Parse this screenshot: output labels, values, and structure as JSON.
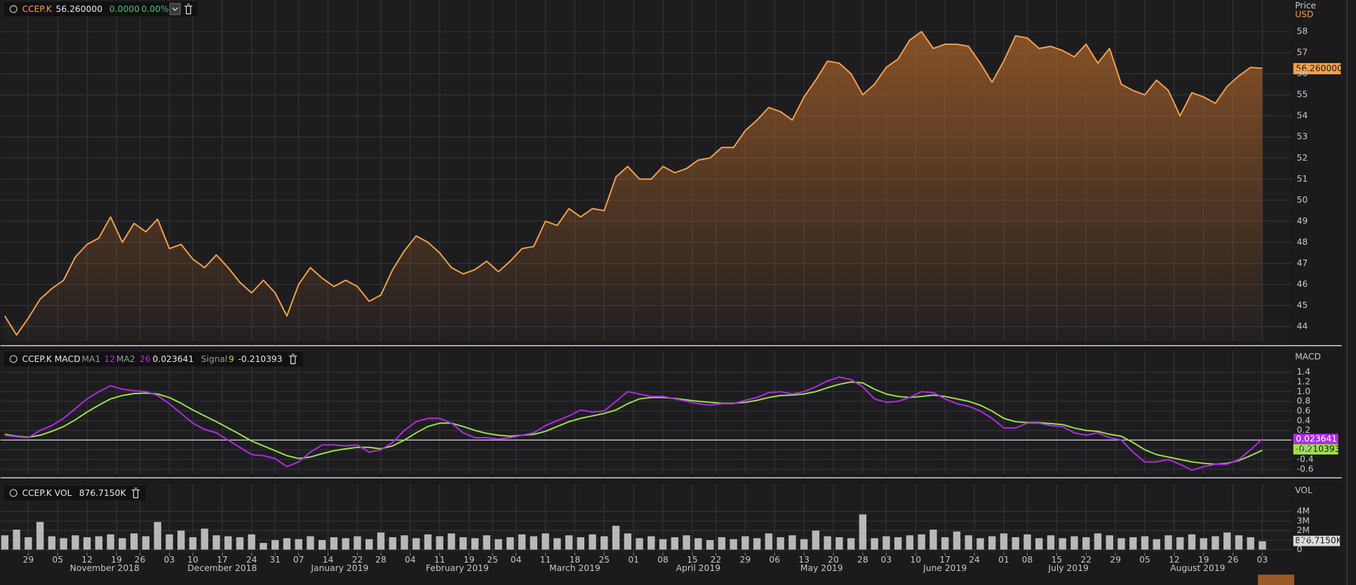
{
  "chart_data": [
    {
      "type": "area",
      "title": "CCEP.K",
      "last_value": "56.260000",
      "change": "0.0000",
      "change_pct": "0.00%",
      "axis_label": "Price",
      "currency": "USD",
      "color": "#f5a04a",
      "grid": true,
      "xlim": [
        0,
        215
      ],
      "x": [
        0,
        2,
        4,
        6,
        8,
        10,
        12,
        14,
        16,
        18,
        20,
        22,
        24,
        26,
        28,
        30,
        32,
        34,
        36,
        38,
        40,
        42,
        44,
        46,
        48,
        50,
        52,
        54,
        56,
        58,
        60,
        62,
        64,
        66,
        68,
        70,
        72,
        74,
        76,
        78,
        80,
        82,
        84,
        86,
        88,
        90,
        92,
        94,
        96,
        98,
        100,
        102,
        104,
        106,
        108,
        110,
        112,
        114,
        116,
        118,
        120,
        122,
        124,
        126,
        128,
        130,
        132,
        134,
        136,
        138,
        140,
        142,
        144,
        146,
        148,
        150,
        152,
        154,
        156,
        158,
        160,
        162,
        164,
        166,
        168,
        170,
        172,
        174,
        176,
        178,
        180,
        182,
        184,
        186,
        188,
        190,
        192,
        194,
        196,
        198,
        200,
        202,
        204,
        206,
        208,
        210,
        212,
        214
      ],
      "values": [
        44.5,
        43.6,
        44.4,
        45.3,
        45.8,
        46.2,
        47.3,
        47.9,
        48.2,
        49.2,
        48.0,
        48.9,
        48.5,
        49.1,
        47.7,
        47.9,
        47.2,
        46.8,
        47.4,
        46.8,
        46.1,
        45.6,
        46.2,
        45.6,
        44.5,
        46.0,
        46.8,
        46.3,
        45.9,
        46.2,
        45.9,
        45.2,
        45.5,
        46.7,
        47.6,
        48.3,
        48.0,
        47.5,
        46.8,
        46.5,
        46.7,
        47.1,
        46.6,
        47.1,
        47.7,
        47.8,
        49.0,
        48.8,
        49.6,
        49.2,
        49.6,
        49.5,
        51.1,
        51.6,
        51.0,
        51.0,
        51.6,
        51.3,
        51.5,
        51.9,
        52.0,
        52.5,
        52.5,
        53.3,
        53.8,
        54.4,
        54.2,
        53.8,
        54.9,
        55.7,
        56.6,
        56.5,
        56.0,
        55.0,
        55.5,
        56.3,
        56.7,
        57.6,
        58.0,
        57.2,
        57.4,
        57.4,
        57.3,
        56.5,
        55.6,
        56.6,
        57.8,
        57.7,
        57.2,
        57.3,
        57.1,
        56.8,
        57.4,
        56.5,
        57.2,
        55.5,
        55.2,
        55.0,
        55.7,
        55.2,
        54.0,
        55.1,
        54.9,
        54.6,
        55.4,
        55.9,
        56.3,
        56.26
      ],
      "ylim": [
        43.3,
        59.5
      ],
      "yticks": [
        44,
        45,
        46,
        47,
        48,
        49,
        50,
        51,
        52,
        53,
        54,
        55,
        56,
        57,
        58
      ]
    },
    {
      "type": "line",
      "title": "CCEP.K MACD",
      "axis_label": "MACD",
      "grid": true,
      "params": [
        {
          "name": "MA1",
          "value": 12
        },
        {
          "name": "MA2",
          "value": 26
        }
      ],
      "xlim": [
        0,
        215
      ],
      "x": [
        0,
        2,
        4,
        6,
        8,
        10,
        12,
        14,
        16,
        18,
        20,
        22,
        24,
        26,
        28,
        30,
        32,
        34,
        36,
        38,
        40,
        42,
        44,
        46,
        48,
        50,
        52,
        54,
        56,
        58,
        60,
        62,
        64,
        66,
        68,
        70,
        72,
        74,
        76,
        78,
        80,
        82,
        84,
        86,
        88,
        90,
        92,
        94,
        96,
        98,
        100,
        102,
        104,
        106,
        108,
        110,
        112,
        114,
        116,
        118,
        120,
        122,
        124,
        126,
        128,
        130,
        132,
        134,
        136,
        138,
        140,
        142,
        144,
        146,
        148,
        150,
        152,
        154,
        156,
        158,
        160,
        162,
        164,
        166,
        168,
        170,
        172,
        174,
        176,
        178,
        180,
        182,
        184,
        186,
        188,
        190,
        192,
        194,
        196,
        198,
        200,
        202,
        204,
        206,
        208,
        210,
        212,
        214
      ],
      "series": [
        {
          "color": "#b22ae6",
          "last_value": "0.023641",
          "values": [
            0.1,
            0.07,
            0.05,
            0.2,
            0.3,
            0.45,
            0.65,
            0.85,
            1.0,
            1.12,
            1.05,
            1.02,
            1.0,
            0.92,
            0.75,
            0.55,
            0.35,
            0.22,
            0.15,
            0.0,
            -0.15,
            -0.3,
            -0.32,
            -0.38,
            -0.55,
            -0.45,
            -0.25,
            -0.1,
            -0.1,
            -0.12,
            -0.1,
            -0.25,
            -0.2,
            -0.05,
            0.2,
            0.38,
            0.45,
            0.45,
            0.35,
            0.15,
            0.05,
            0.05,
            0.02,
            0.05,
            0.1,
            0.15,
            0.3,
            0.4,
            0.5,
            0.62,
            0.58,
            0.6,
            0.8,
            1.0,
            0.95,
            0.9,
            0.9,
            0.85,
            0.8,
            0.75,
            0.72,
            0.75,
            0.75,
            0.82,
            0.88,
            0.98,
            1.0,
            0.95,
            1.0,
            1.1,
            1.22,
            1.3,
            1.25,
            1.1,
            0.85,
            0.78,
            0.8,
            0.88,
            1.0,
            0.98,
            0.85,
            0.75,
            0.7,
            0.6,
            0.45,
            0.25,
            0.25,
            0.35,
            0.35,
            0.3,
            0.28,
            0.15,
            0.1,
            0.15,
            0.05,
            0.0,
            -0.25,
            -0.45,
            -0.45,
            -0.4,
            -0.5,
            -0.62,
            -0.55,
            -0.5,
            -0.5,
            -0.4,
            -0.2,
            0.023641
          ]
        },
        {
          "name": "Signal",
          "period": 9,
          "color": "#9be04a",
          "last_value": "-0.210393",
          "values": [
            0.12,
            0.08,
            0.06,
            0.1,
            0.18,
            0.28,
            0.42,
            0.58,
            0.72,
            0.85,
            0.92,
            0.96,
            0.97,
            0.95,
            0.88,
            0.76,
            0.62,
            0.5,
            0.38,
            0.25,
            0.12,
            -0.02,
            -0.12,
            -0.22,
            -0.32,
            -0.38,
            -0.35,
            -0.28,
            -0.22,
            -0.18,
            -0.15,
            -0.15,
            -0.18,
            -0.12,
            0.0,
            0.15,
            0.28,
            0.35,
            0.35,
            0.28,
            0.2,
            0.14,
            0.1,
            0.08,
            0.1,
            0.12,
            0.18,
            0.28,
            0.38,
            0.45,
            0.5,
            0.55,
            0.62,
            0.75,
            0.85,
            0.88,
            0.88,
            0.86,
            0.83,
            0.8,
            0.78,
            0.76,
            0.76,
            0.78,
            0.82,
            0.88,
            0.92,
            0.93,
            0.95,
            1.0,
            1.08,
            1.15,
            1.2,
            1.18,
            1.05,
            0.95,
            0.9,
            0.88,
            0.9,
            0.93,
            0.9,
            0.85,
            0.8,
            0.72,
            0.6,
            0.45,
            0.38,
            0.36,
            0.36,
            0.34,
            0.32,
            0.25,
            0.2,
            0.18,
            0.12,
            0.08,
            -0.05,
            -0.2,
            -0.3,
            -0.35,
            -0.4,
            -0.45,
            -0.48,
            -0.5,
            -0.48,
            -0.42,
            -0.32,
            -0.210393
          ]
        }
      ],
      "ylim": [
        -0.69,
        1.86
      ],
      "yticks": [
        -0.6,
        -0.4,
        -0.2,
        0.2,
        0.4,
        0.6,
        0.8,
        {
          "value": 1,
          "label": "1.0"
        },
        1.2,
        1.4
      ]
    },
    {
      "type": "bar",
      "title": "CCEP.K VOL",
      "last_value": "876.7150K",
      "axis_label": "VOL",
      "color": "#b8b8b8",
      "grid": true,
      "xlim": [
        0,
        215
      ],
      "x": [
        0,
        2,
        4,
        6,
        8,
        10,
        12,
        14,
        16,
        18,
        20,
        22,
        24,
        26,
        28,
        30,
        32,
        34,
        36,
        38,
        40,
        42,
        44,
        46,
        48,
        50,
        52,
        54,
        56,
        58,
        60,
        62,
        64,
        66,
        68,
        70,
        72,
        74,
        76,
        78,
        80,
        82,
        84,
        86,
        88,
        90,
        92,
        94,
        96,
        98,
        100,
        102,
        104,
        106,
        108,
        110,
        112,
        114,
        116,
        118,
        120,
        122,
        124,
        126,
        128,
        130,
        132,
        134,
        136,
        138,
        140,
        142,
        144,
        146,
        148,
        150,
        152,
        154,
        156,
        158,
        160,
        162,
        164,
        166,
        168,
        170,
        172,
        174,
        176,
        178,
        180,
        182,
        184,
        186,
        188,
        190,
        192,
        194,
        196,
        198,
        200,
        202,
        204,
        206,
        208,
        210,
        212,
        214
      ],
      "values": [
        1500000,
        2100000,
        1300000,
        2900000,
        1400000,
        1200000,
        1500000,
        1300000,
        1400000,
        1600000,
        1200000,
        1700000,
        1400000,
        2900000,
        1600000,
        2000000,
        1300000,
        2200000,
        1500000,
        1400000,
        1300000,
        1600000,
        700000,
        1000000,
        1200000,
        1100000,
        1400000,
        1000000,
        1300000,
        1200000,
        1400000,
        1100000,
        1800000,
        1300000,
        1500000,
        1200000,
        1600000,
        1400000,
        1700000,
        1300000,
        1200000,
        1500000,
        1100000,
        1300000,
        1600000,
        1400000,
        1700000,
        1200000,
        1500000,
        1300000,
        1600000,
        1400000,
        2500000,
        1700000,
        1200000,
        1400000,
        1100000,
        1300000,
        1500000,
        1200000,
        1000000,
        1300000,
        1100000,
        1400000,
        1200000,
        1700000,
        1300000,
        1500000,
        1100000,
        2000000,
        1400000,
        1300000,
        1200000,
        3700000,
        1200000,
        1400000,
        1300000,
        1500000,
        1600000,
        2100000,
        1300000,
        1900000,
        1500000,
        1200000,
        1400000,
        1700000,
        1300000,
        1600000,
        1200000,
        1500000,
        1200000,
        1400000,
        1300000,
        1700000,
        1500000,
        1200000,
        1300000,
        1400000,
        1100000,
        1500000,
        1300000,
        1600000,
        1200000,
        1400000,
        1800000,
        1500000,
        1300000,
        876715
      ],
      "ylim": [
        -360000,
        6900000
      ],
      "yticks": [
        0,
        {
          "value": 1000000,
          "label": "1M"
        },
        {
          "value": 2000000,
          "label": "2M"
        },
        {
          "value": 3000000,
          "label": "3M"
        },
        {
          "value": 4000000,
          "label": "4M"
        }
      ],
      "xticks": [
        {
          "value": 4,
          "label": "29"
        },
        {
          "value": 9,
          "label": "05"
        },
        {
          "value": 14,
          "label": "12"
        },
        {
          "value": 19,
          "label": "19"
        },
        {
          "value": 23,
          "label": "26"
        },
        {
          "value": 28,
          "label": "03"
        },
        {
          "value": 32,
          "label": "10"
        },
        {
          "value": 37,
          "label": "17"
        },
        {
          "value": 42,
          "label": "24"
        },
        {
          "value": 46,
          "label": "31"
        },
        {
          "value": 50,
          "label": "07"
        },
        {
          "value": 55,
          "label": "14"
        },
        {
          "value": 60,
          "label": "22"
        },
        {
          "value": 64,
          "label": "28"
        },
        {
          "value": 69,
          "label": "04"
        },
        {
          "value": 74,
          "label": "11"
        },
        {
          "value": 79,
          "label": "19"
        },
        {
          "value": 83,
          "label": "25"
        },
        {
          "value": 87,
          "label": "04"
        },
        {
          "value": 92,
          "label": "11"
        },
        {
          "value": 97,
          "label": "18"
        },
        {
          "value": 102,
          "label": "25"
        },
        {
          "value": 107,
          "label": "01"
        },
        {
          "value": 112,
          "label": "08"
        },
        {
          "value": 117,
          "label": "15"
        },
        {
          "value": 121,
          "label": "22"
        },
        {
          "value": 126,
          "label": "29"
        },
        {
          "value": 131,
          "label": "06"
        },
        {
          "value": 136,
          "label": "13"
        },
        {
          "value": 141,
          "label": "20"
        },
        {
          "value": 146,
          "label": "28"
        },
        {
          "value": 150,
          "label": "03"
        },
        {
          "value": 155,
          "label": "10"
        },
        {
          "value": 160,
          "label": "17"
        },
        {
          "value": 165,
          "label": "24"
        },
        {
          "value": 170,
          "label": "01"
        },
        {
          "value": 174,
          "label": "08"
        },
        {
          "value": 179,
          "label": "15"
        },
        {
          "value": 184,
          "label": "22"
        },
        {
          "value": 189,
          "label": "29"
        },
        {
          "value": 194,
          "label": "05"
        },
        {
          "value": 199,
          "label": "12"
        },
        {
          "value": 204,
          "label": "19"
        },
        {
          "value": 209,
          "label": "26"
        },
        {
          "value": 214,
          "label": "03"
        }
      ],
      "month_labels": [
        {
          "value": 17,
          "label": "November 2018"
        },
        {
          "value": 37,
          "label": "December 2018"
        },
        {
          "value": 57,
          "label": "January 2019"
        },
        {
          "value": 77,
          "label": "February 2019"
        },
        {
          "value": 97,
          "label": "March 2019"
        },
        {
          "value": 118,
          "label": "April 2019"
        },
        {
          "value": 139,
          "label": "May 2019"
        },
        {
          "value": 160,
          "label": "June 2019"
        },
        {
          "value": 181,
          "label": "July 2019"
        },
        {
          "value": 203,
          "label": "August 2019"
        }
      ]
    }
  ]
}
